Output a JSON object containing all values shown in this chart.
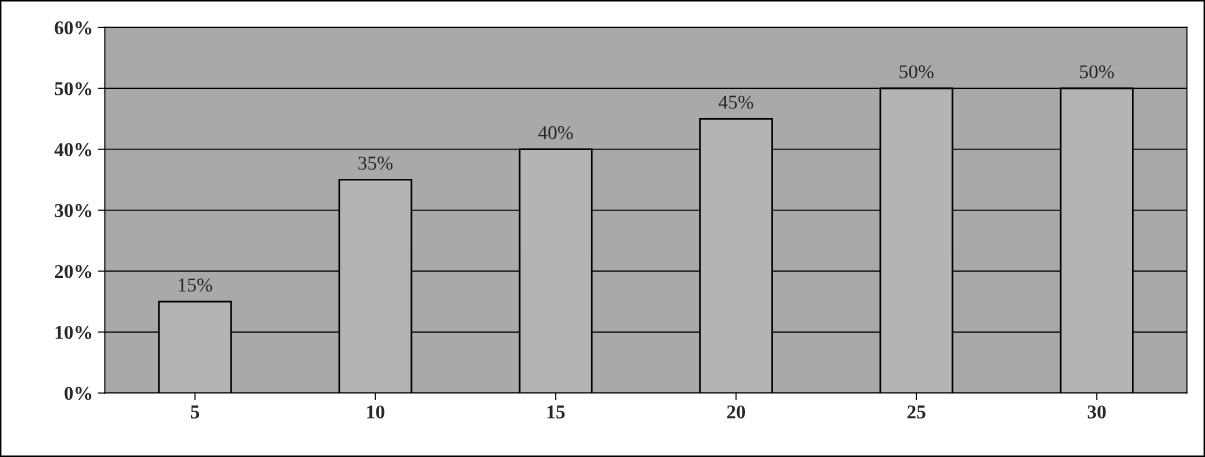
{
  "chart_data": {
    "type": "bar",
    "categories": [
      "5",
      "10",
      "15",
      "20",
      "25",
      "30"
    ],
    "values": [
      15,
      35,
      40,
      45,
      50,
      50
    ],
    "value_labels": [
      "15%",
      "35%",
      "40%",
      "45%",
      "50%",
      "50%"
    ],
    "color": "#b4b4b4",
    "ylim": [
      0,
      60
    ],
    "yticks": [
      {
        "value": 0,
        "label": "0%"
      },
      {
        "value": 10,
        "label": "10%"
      },
      {
        "value": 20,
        "label": "20%"
      },
      {
        "value": 30,
        "label": "30%"
      },
      {
        "value": 40,
        "label": "40%"
      },
      {
        "value": 50,
        "label": "50%"
      },
      {
        "value": 60,
        "label": "60%"
      }
    ],
    "grid": "y",
    "legend": false
  }
}
